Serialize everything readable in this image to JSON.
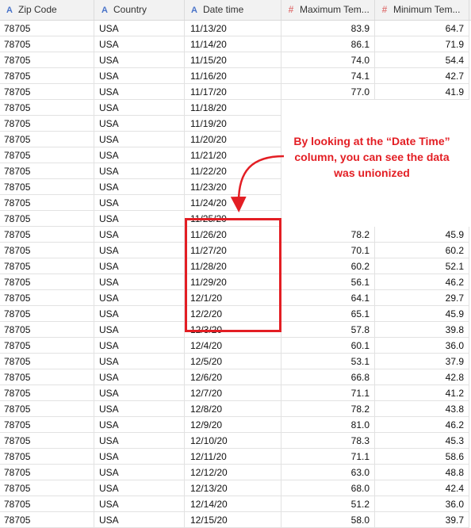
{
  "table": {
    "columns": [
      {
        "label": "Zip Code",
        "type": "string",
        "icon": "string-type-icon"
      },
      {
        "label": "Country",
        "type": "string",
        "icon": "string-type-icon"
      },
      {
        "label": "Date time",
        "type": "string",
        "icon": "string-type-icon"
      },
      {
        "label": "Maximum Tem...",
        "type": "number",
        "icon": "number-type-icon"
      },
      {
        "label": "Minimum Tem...",
        "type": "number",
        "icon": "number-type-icon"
      }
    ],
    "type_glyphs": {
      "string": "A",
      "number": "#"
    },
    "rows": [
      [
        "78705",
        "USA",
        "11/13/20",
        "83.9",
        "64.7"
      ],
      [
        "78705",
        "USA",
        "11/14/20",
        "86.1",
        "71.9"
      ],
      [
        "78705",
        "USA",
        "11/15/20",
        "74.0",
        "54.4"
      ],
      [
        "78705",
        "USA",
        "11/16/20",
        "74.1",
        "42.7"
      ],
      [
        "78705",
        "USA",
        "11/17/20",
        "77.0",
        "41.9"
      ],
      [
        "78705",
        "USA",
        "11/18/20",
        "",
        ""
      ],
      [
        "78705",
        "USA",
        "11/19/20",
        "",
        ""
      ],
      [
        "78705",
        "USA",
        "11/20/20",
        "",
        ""
      ],
      [
        "78705",
        "USA",
        "11/21/20",
        "",
        ""
      ],
      [
        "78705",
        "USA",
        "11/22/20",
        "",
        ""
      ],
      [
        "78705",
        "USA",
        "11/23/20",
        "",
        ""
      ],
      [
        "78705",
        "USA",
        "11/24/20",
        "",
        ""
      ],
      [
        "78705",
        "USA",
        "11/25/20",
        "",
        ""
      ],
      [
        "78705",
        "USA",
        "11/26/20",
        "78.2",
        "45.9"
      ],
      [
        "78705",
        "USA",
        "11/27/20",
        "70.1",
        "60.2"
      ],
      [
        "78705",
        "USA",
        "11/28/20",
        "60.2",
        "52.1"
      ],
      [
        "78705",
        "USA",
        "11/29/20",
        "56.1",
        "46.2"
      ],
      [
        "78705",
        "USA",
        "12/1/20",
        "64.1",
        "29.7"
      ],
      [
        "78705",
        "USA",
        "12/2/20",
        "65.1",
        "45.9"
      ],
      [
        "78705",
        "USA",
        "12/3/20",
        "57.8",
        "39.8"
      ],
      [
        "78705",
        "USA",
        "12/4/20",
        "60.1",
        "36.0"
      ],
      [
        "78705",
        "USA",
        "12/5/20",
        "53.1",
        "37.9"
      ],
      [
        "78705",
        "USA",
        "12/6/20",
        "66.8",
        "42.8"
      ],
      [
        "78705",
        "USA",
        "12/7/20",
        "71.1",
        "41.2"
      ],
      [
        "78705",
        "USA",
        "12/8/20",
        "78.2",
        "43.8"
      ],
      [
        "78705",
        "USA",
        "12/9/20",
        "81.0",
        "46.2"
      ],
      [
        "78705",
        "USA",
        "12/10/20",
        "78.3",
        "45.3"
      ],
      [
        "78705",
        "USA",
        "12/11/20",
        "71.1",
        "58.6"
      ],
      [
        "78705",
        "USA",
        "12/12/20",
        "63.0",
        "48.8"
      ],
      [
        "78705",
        "USA",
        "12/13/20",
        "68.0",
        "42.4"
      ],
      [
        "78705",
        "USA",
        "12/14/20",
        "51.2",
        "36.0"
      ],
      [
        "78705",
        "USA",
        "12/15/20",
        "58.0",
        "39.7"
      ]
    ]
  },
  "annotation": {
    "text": "By looking at the “Date Time”\ncolumn, you can see the data\nwas unionized",
    "color": "#e31e24"
  }
}
